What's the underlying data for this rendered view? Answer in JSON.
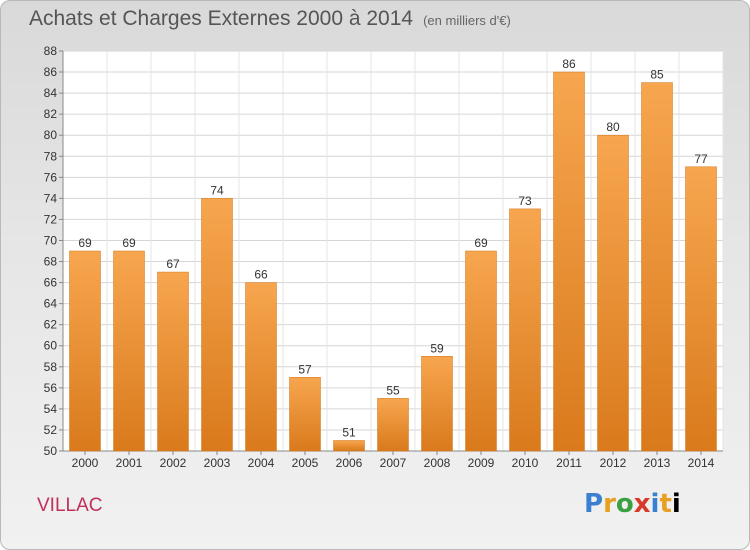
{
  "header": {
    "title": "Achats et Charges Externes 2000 à 2014",
    "subtitle": "(en milliers d'€)"
  },
  "footer": {
    "town": "VILLAC",
    "logo": [
      "P",
      "r",
      "o",
      "x",
      "i",
      "t",
      "i"
    ]
  },
  "chart_data": {
    "type": "bar",
    "title": "Achats et Charges Externes 2000 à 2014",
    "subtitle": "(en milliers d'€)",
    "categories": [
      "2000",
      "2001",
      "2002",
      "2003",
      "2004",
      "2005",
      "2006",
      "2007",
      "2008",
      "2009",
      "2010",
      "2011",
      "2012",
      "2013",
      "2014"
    ],
    "values": [
      69,
      69,
      67,
      74,
      66,
      57,
      51,
      55,
      59,
      69,
      73,
      86,
      80,
      85,
      77
    ],
    "ylim": [
      50,
      88
    ],
    "yticks": [
      50,
      52,
      54,
      56,
      58,
      60,
      62,
      64,
      66,
      68,
      70,
      72,
      74,
      76,
      78,
      80,
      82,
      84,
      86,
      88
    ],
    "grid": true,
    "bar_color_top": "#f7a64f",
    "bar_color_bottom": "#d97a1c"
  }
}
